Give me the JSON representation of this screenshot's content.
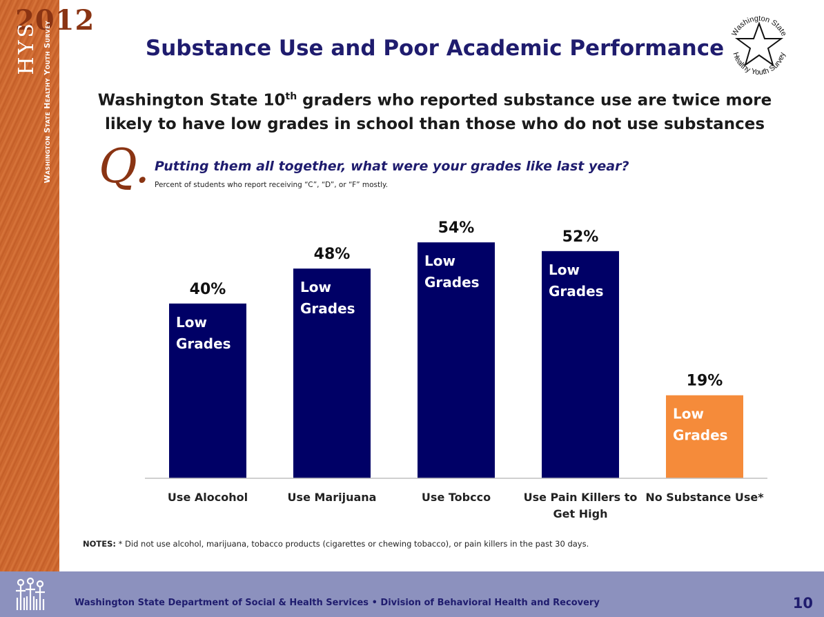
{
  "sidebar": {
    "year": "2012",
    "hys": "HYS",
    "survey_name": "Washington State Healthy Youth Survey"
  },
  "logo": {
    "top_text": "Washington State",
    "bottom_text": "Healthy Youth Survey"
  },
  "title": "Substance Use and Poor Academic Performance",
  "subtitle": {
    "line1_pre": "Washington State 10",
    "line1_sup": "th",
    "line1_post": " graders who reported substance use are twice more",
    "line2": "likely to have low grades in school than those who do not use substances"
  },
  "question": {
    "mark": "Q.",
    "text": "Putting them all together, what were your grades like last year?",
    "sub": "Percent of students who report receiving “C”, “D”, or “F” mostly."
  },
  "notes": {
    "label": "NOTES:",
    "text": " * Did not use alcohol, marijuana, tobacco products (cigarettes or chewing tobacco), or pain killers in the past 30 days."
  },
  "footer": {
    "org": "Washington State Department of Social & Health Services • Division of Behavioral Health and Recovery",
    "page": "10"
  },
  "colors": {
    "bar": "#000066",
    "highlight": "#f58b3a",
    "sidebar": "#c9622a",
    "footer": "#8c91be",
    "title": "#1f1c6e"
  },
  "chart_data": {
    "type": "bar",
    "categories": [
      "Use Alocohol",
      "Use Marijuana",
      "Use Tobcco",
      "Use Pain Killers to Get High",
      "No Substance Use*"
    ],
    "values": [
      40,
      48,
      54,
      52,
      19
    ],
    "value_labels": [
      "40%",
      "48%",
      "54%",
      "52%",
      "19%"
    ],
    "bar_text": [
      "Low Grades",
      "Low Grades",
      "Low Grades",
      "Low Grades",
      "Low Grades"
    ],
    "bar_colors": [
      "#000066",
      "#000066",
      "#000066",
      "#000066",
      "#f58b3a"
    ],
    "ylim": [
      0,
      100
    ],
    "grid": false,
    "legend": "none"
  }
}
